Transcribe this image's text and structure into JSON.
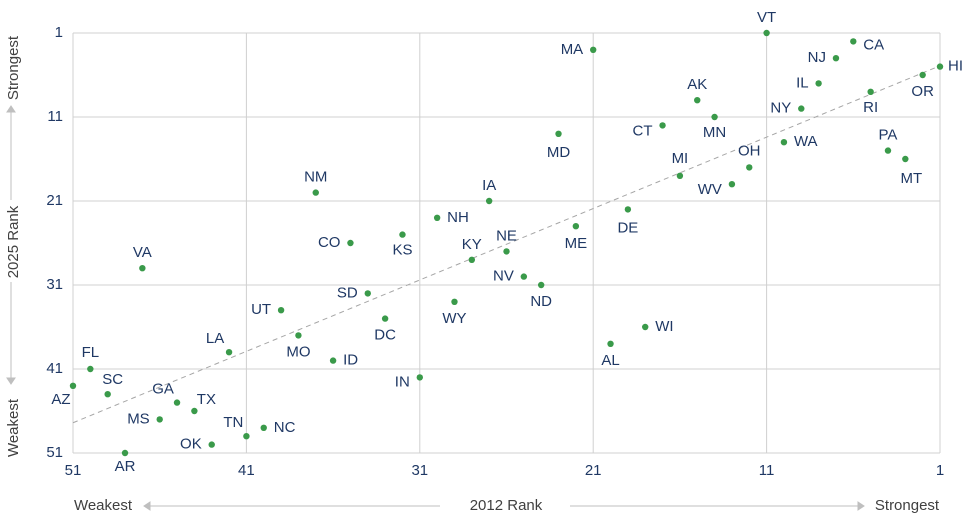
{
  "chart_data": {
    "type": "scatter",
    "x_title": "2012 Rank",
    "y_title": "2025 Rank",
    "x_low_label": "Weakest",
    "x_high_label": "Strongest",
    "y_high_label": "Strongest",
    "y_low_label": "Weakest",
    "labels": [
      "VT",
      "CA",
      "NJ",
      "HI",
      "OR",
      "IL",
      "RI",
      "MA",
      "AK",
      "NY",
      "MN",
      "CT",
      "MD",
      "WA",
      "PA",
      "MT",
      "OH",
      "MI",
      "WV",
      "NM",
      "IA",
      "DE",
      "NH",
      "ME",
      "KS",
      "CO",
      "NE",
      "VA",
      "KY",
      "NV",
      "ND",
      "SD",
      "WY",
      "UT",
      "DC",
      "WI",
      "MO",
      "AL",
      "LA",
      "ID",
      "FL",
      "IN",
      "AZ",
      "SC",
      "GA",
      "TX",
      "MS",
      "NC",
      "TN",
      "OK",
      "AR"
    ],
    "x": [
      11,
      6,
      7,
      1,
      2,
      8,
      5,
      21,
      15,
      9,
      14,
      17,
      23,
      10,
      4,
      3,
      12,
      16,
      13,
      37,
      27,
      19,
      30,
      22,
      32,
      35,
      26,
      47,
      28,
      25,
      24,
      34,
      29,
      39,
      33,
      18,
      38,
      20,
      42,
      36,
      50,
      31,
      51,
      49,
      45,
      44,
      46,
      40,
      41,
      43,
      48
    ],
    "values": [
      1,
      2,
      4,
      5,
      6,
      7,
      8,
      3,
      9,
      10,
      11,
      12,
      13,
      14,
      15,
      16,
      17,
      18,
      19,
      20,
      21,
      22,
      23,
      24,
      25,
      26,
      27,
      29,
      28,
      30,
      31,
      32,
      33,
      34,
      35,
      36,
      37,
      38,
      39,
      40,
      41,
      42,
      43,
      44,
      45,
      46,
      47,
      48,
      49,
      50,
      51
    ],
    "color": "#3a9a4a",
    "trendline": {
      "x": [
        51,
        1
      ],
      "values": [
        47.4,
        4.9
      ],
      "color": "#a6a6a6"
    },
    "xlim": [
      51,
      1
    ],
    "ylim": [
      51,
      1
    ],
    "xticks": [
      51,
      41,
      31,
      21,
      11,
      1
    ],
    "yticks": [
      1,
      11,
      21,
      31,
      41,
      51
    ],
    "grid": true
  }
}
